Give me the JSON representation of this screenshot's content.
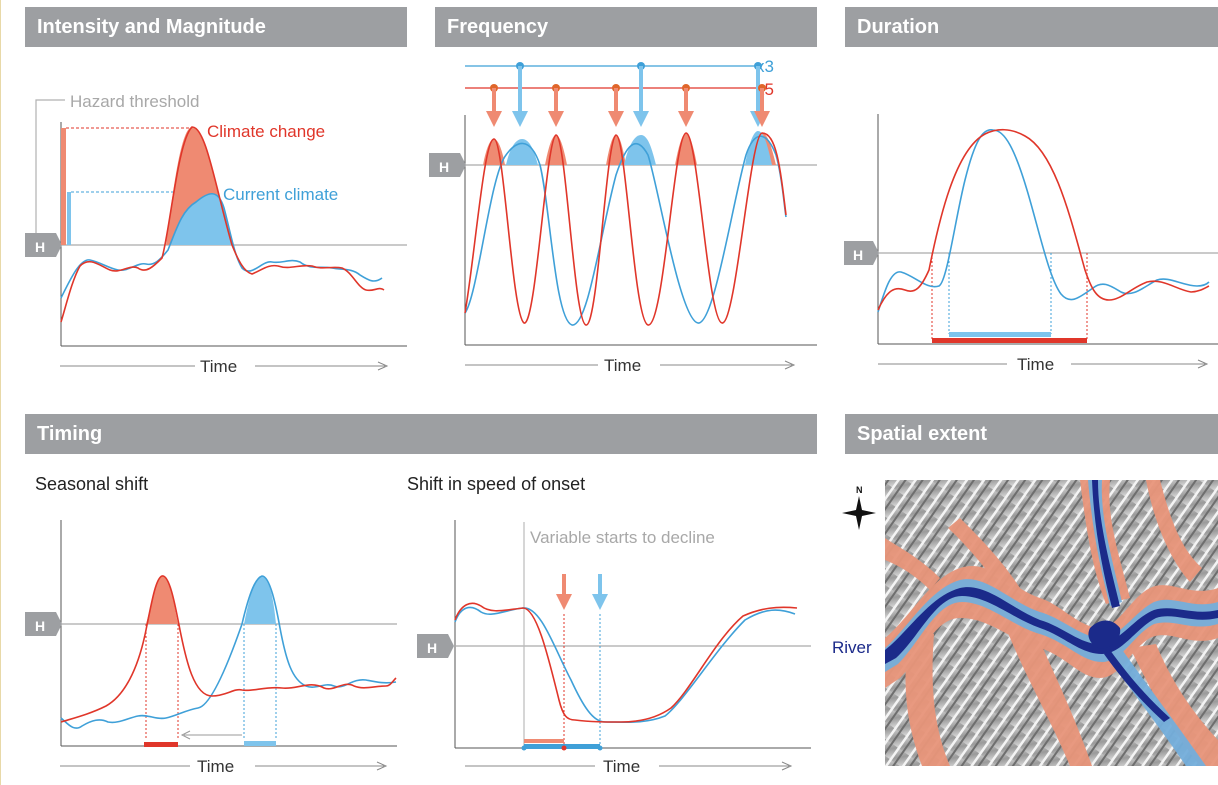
{
  "headers": {
    "intensity": "Intensity and Magnitude",
    "frequency": "Frequency",
    "duration": "Duration",
    "timing": "Timing",
    "spatial": "Spatial extent"
  },
  "labels": {
    "time": "Time",
    "h": "H",
    "hazard_threshold": "Hazard threshold",
    "climate_change": "Climate change",
    "current_climate": "Current climate",
    "x3": "x3",
    "x5": "x5",
    "seasonal_shift": "Seasonal shift",
    "shift_onset": "Shift in speed of onset",
    "variable_decline": "Variable starts to decline",
    "river": "River",
    "north": "N"
  },
  "colors": {
    "header_bg": "#9d9fa2",
    "climate_change": "#e0362a",
    "climate_change_fill": "#ef8a72",
    "current_climate": "#3fa0d8",
    "current_climate_fill": "#7ec4ec",
    "threshold": "#a8a8a8",
    "river": "#1b2a8a"
  }
}
